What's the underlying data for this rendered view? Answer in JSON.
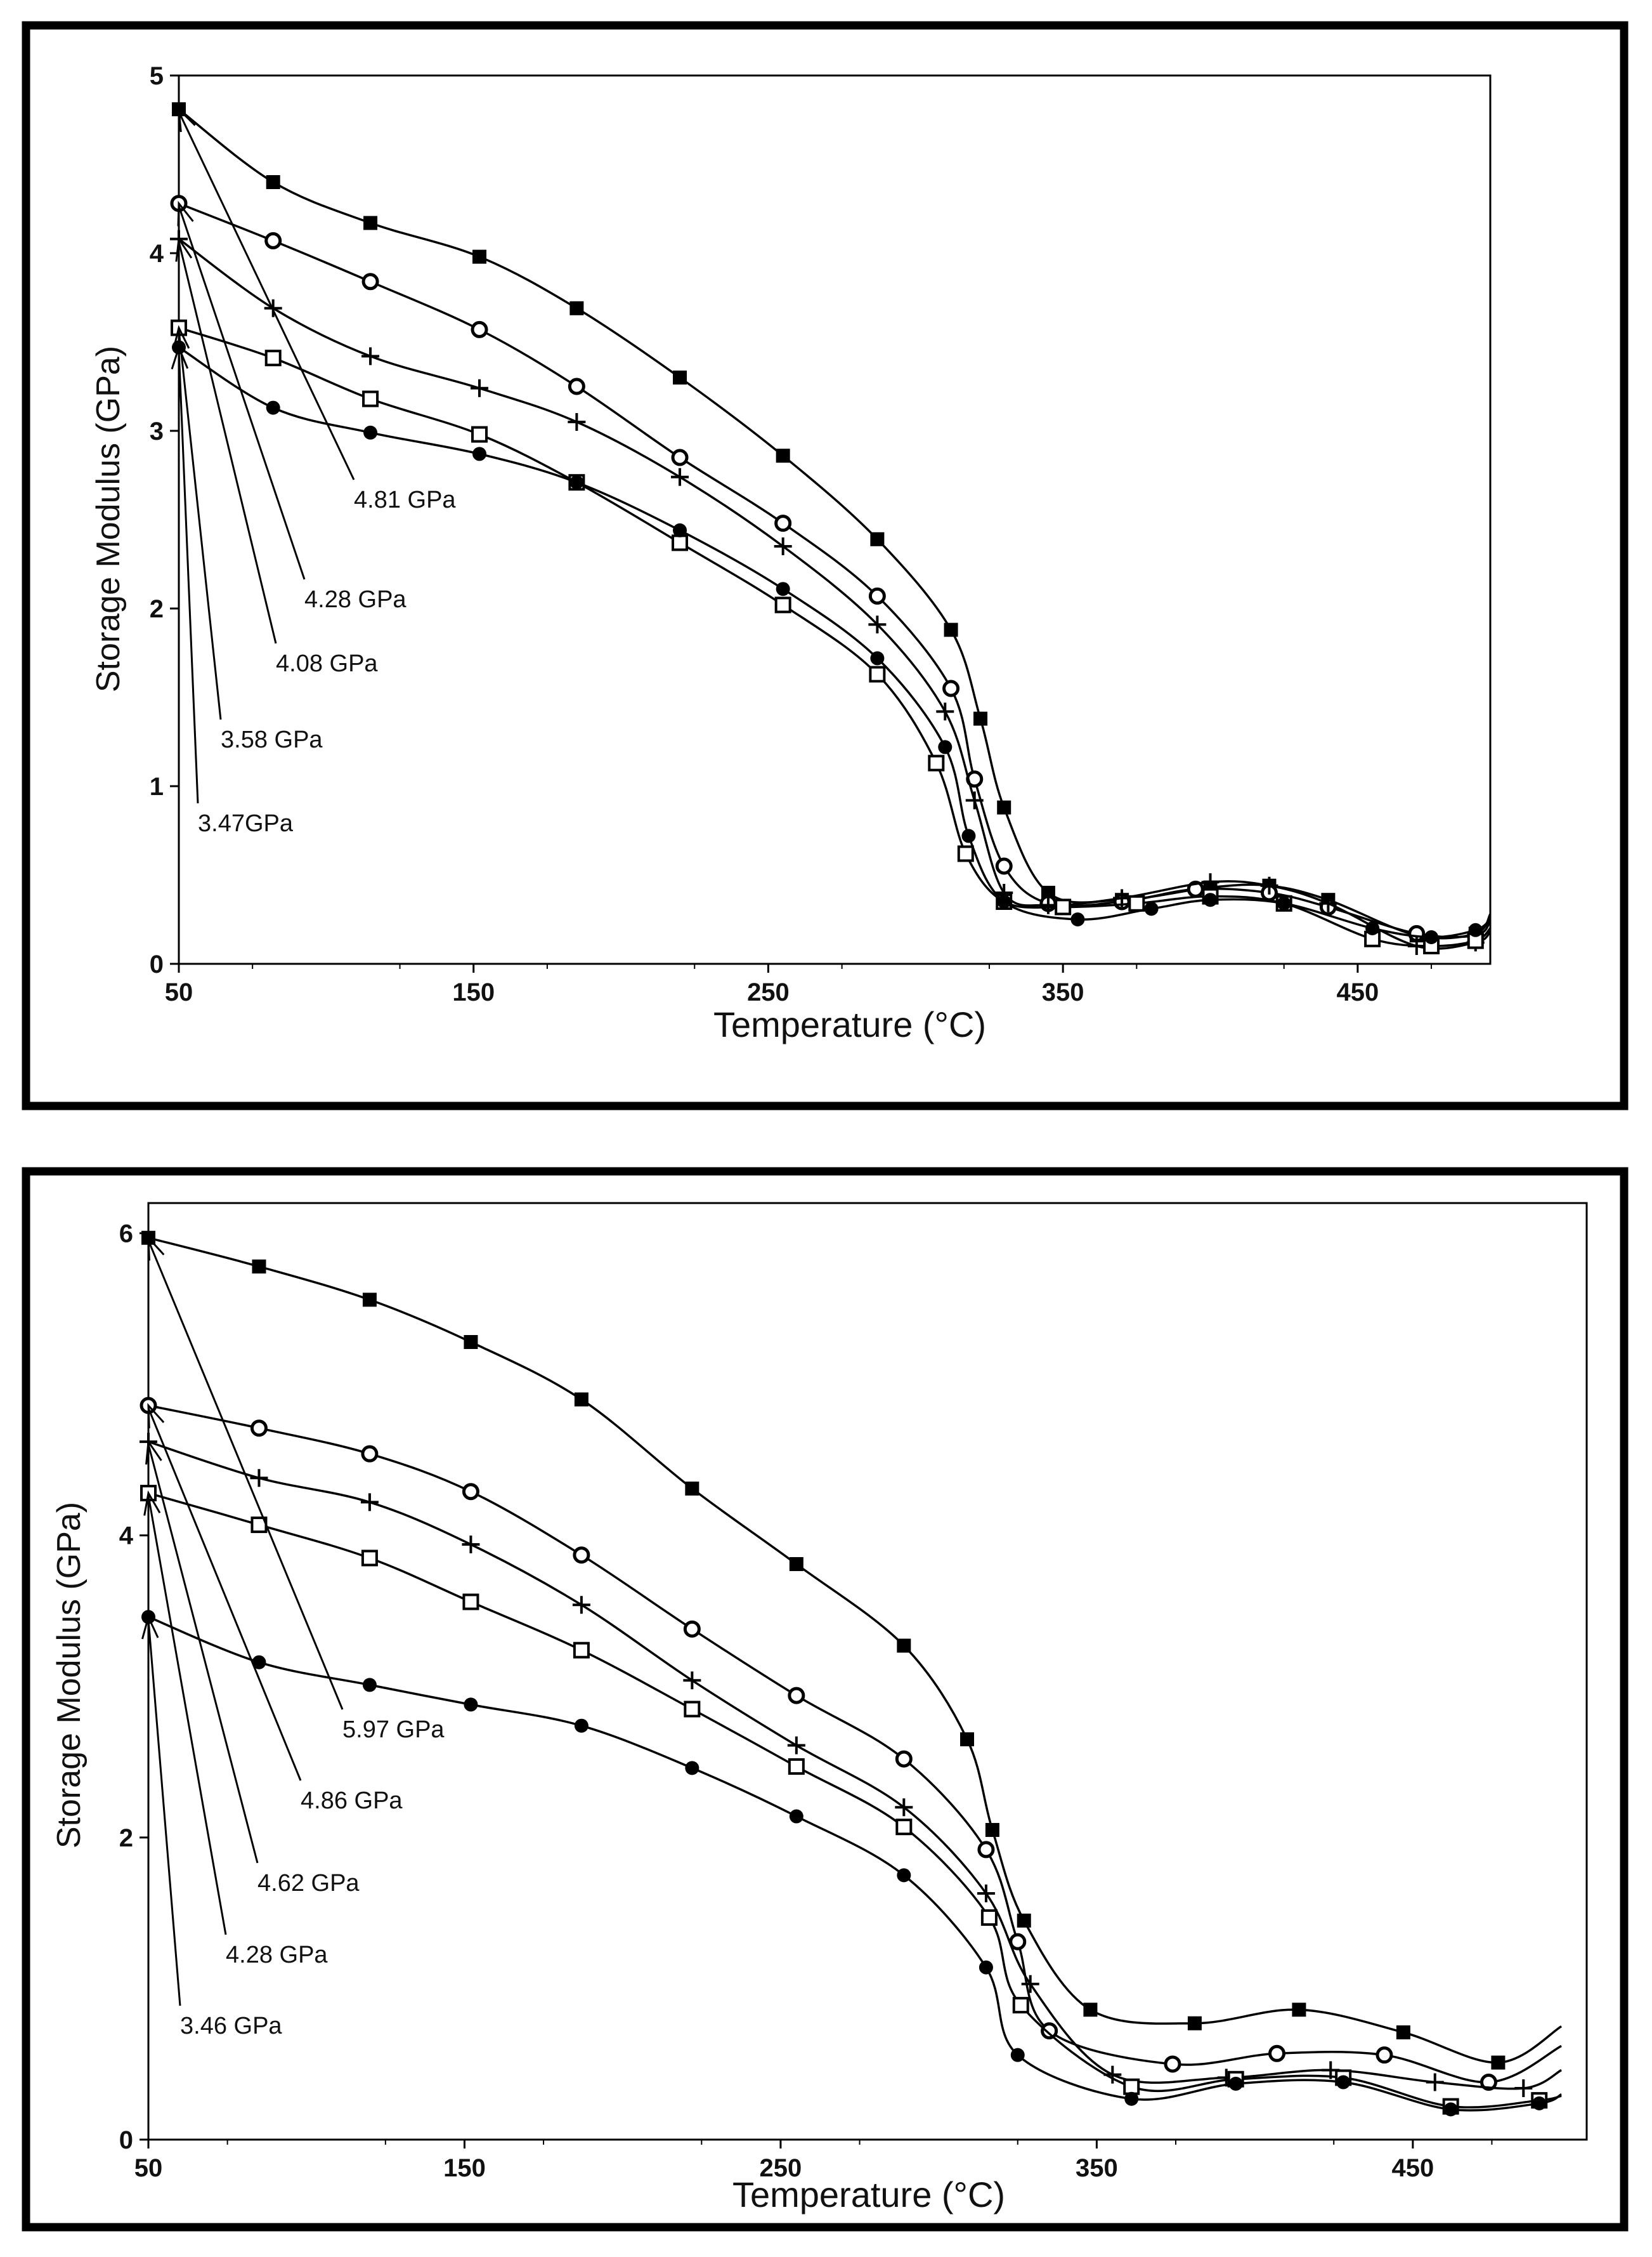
{
  "chart_data": [
    {
      "type": "line",
      "ylabel": "Storage Modulus (GPa)",
      "xlabel": "Temperature (°C)",
      "xlim": [
        50,
        495
      ],
      "ylim": [
        0,
        5
      ],
      "x_ticks": [
        50,
        150,
        250,
        350,
        450
      ],
      "y_ticks": [
        0,
        1,
        2,
        3,
        4,
        5
      ],
      "grid": false,
      "series": [
        {
          "name": "filled-square",
          "marker": "filled-square",
          "annotation": "4.81 GPa",
          "x": [
            50,
            82,
            115,
            152,
            185,
            220,
            255,
            287,
            312,
            322,
            330,
            345,
            370,
            400,
            420,
            440,
            470,
            490,
            495
          ],
          "y": [
            4.81,
            4.4,
            4.17,
            3.98,
            3.69,
            3.3,
            2.86,
            2.39,
            1.88,
            1.38,
            0.88,
            0.4,
            0.36,
            0.43,
            0.44,
            0.36,
            0.16,
            0.17,
            0.28
          ]
        },
        {
          "name": "open-circle",
          "marker": "open-circle",
          "annotation": "4.28 GPa",
          "x": [
            50,
            82,
            115,
            152,
            185,
            220,
            255,
            287,
            312,
            320,
            330,
            345,
            370,
            395,
            420,
            440,
            470,
            490,
            495
          ],
          "y": [
            4.28,
            4.07,
            3.84,
            3.57,
            3.25,
            2.85,
            2.48,
            2.07,
            1.55,
            1.04,
            0.55,
            0.34,
            0.35,
            0.42,
            0.4,
            0.32,
            0.17,
            0.16,
            0.24
          ]
        },
        {
          "name": "plus",
          "marker": "plus",
          "annotation": "4.08 GPa",
          "x": [
            50,
            82,
            115,
            152,
            185,
            220,
            255,
            287,
            310,
            320,
            330,
            345,
            370,
            400,
            420,
            440,
            470,
            490,
            495
          ],
          "y": [
            4.08,
            3.69,
            3.42,
            3.24,
            3.05,
            2.74,
            2.35,
            1.91,
            1.42,
            0.92,
            0.4,
            0.33,
            0.37,
            0.46,
            0.44,
            0.34,
            0.1,
            0.12,
            0.18
          ]
        },
        {
          "name": "open-square",
          "marker": "open-square",
          "annotation": "3.58 GPa",
          "x": [
            50,
            82,
            115,
            152,
            185,
            220,
            255,
            287,
            307,
            317,
            330,
            350,
            375,
            400,
            425,
            455,
            475,
            490,
            495
          ],
          "y": [
            3.58,
            3.41,
            3.18,
            2.98,
            2.71,
            2.37,
            2.02,
            1.63,
            1.13,
            0.62,
            0.35,
            0.32,
            0.34,
            0.38,
            0.34,
            0.14,
            0.1,
            0.13,
            0.2
          ]
        },
        {
          "name": "filled-circle",
          "marker": "filled-circle",
          "annotation": "3.47GPa",
          "x": [
            50,
            82,
            115,
            152,
            185,
            220,
            255,
            287,
            310,
            318,
            330,
            355,
            380,
            400,
            425,
            455,
            475,
            490,
            495
          ],
          "y": [
            3.47,
            3.13,
            2.99,
            2.87,
            2.71,
            2.44,
            2.11,
            1.72,
            1.22,
            0.72,
            0.35,
            0.25,
            0.31,
            0.36,
            0.34,
            0.2,
            0.15,
            0.19,
            0.25
          ]
        }
      ]
    },
    {
      "type": "line",
      "ylabel": "Storage Modulus (GPa)",
      "xlabel": "Temperature (°C)",
      "xlim": [
        50,
        505
      ],
      "ylim": [
        0,
        6.2
      ],
      "x_ticks": [
        50,
        150,
        250,
        350,
        450
      ],
      "y_ticks": [
        0,
        2,
        4,
        6
      ],
      "grid": false,
      "series": [
        {
          "name": "filled-square",
          "marker": "filled-square",
          "annotation": "5.97 GPa",
          "x": [
            50,
            85,
            120,
            152,
            187,
            222,
            255,
            289,
            309,
            317,
            327,
            348,
            381,
            414,
            447,
            477,
            497
          ],
          "y": [
            5.97,
            5.78,
            5.56,
            5.28,
            4.9,
            4.31,
            3.81,
            3.27,
            2.65,
            2.05,
            1.45,
            0.86,
            0.77,
            0.86,
            0.71,
            0.51,
            0.75
          ]
        },
        {
          "name": "open-circle",
          "marker": "open-circle",
          "annotation": "4.86 GPa",
          "x": [
            50,
            85,
            120,
            152,
            187,
            222,
            255,
            289,
            315,
            325,
            335,
            374,
            407,
            441,
            474,
            497
          ],
          "y": [
            4.86,
            4.71,
            4.54,
            4.29,
            3.87,
            3.38,
            2.94,
            2.52,
            1.92,
            1.31,
            0.72,
            0.5,
            0.57,
            0.56,
            0.38,
            0.62
          ]
        },
        {
          "name": "plus",
          "marker": "plus",
          "annotation": "4.62 GPa",
          "x": [
            50,
            85,
            120,
            152,
            187,
            222,
            255,
            289,
            315,
            329,
            355,
            391,
            424,
            457,
            485,
            497
          ],
          "y": [
            4.62,
            4.38,
            4.22,
            3.94,
            3.54,
            3.04,
            2.61,
            2.2,
            1.63,
            1.03,
            0.43,
            0.41,
            0.46,
            0.38,
            0.34,
            0.46
          ]
        },
        {
          "name": "open-square",
          "marker": "open-square",
          "annotation": "4.28 GPa",
          "x": [
            50,
            85,
            120,
            152,
            187,
            222,
            255,
            289,
            316,
            326,
            361,
            394,
            428,
            462,
            490,
            497
          ],
          "y": [
            4.28,
            4.07,
            3.85,
            3.56,
            3.24,
            2.85,
            2.47,
            2.07,
            1.47,
            0.89,
            0.35,
            0.4,
            0.41,
            0.22,
            0.26,
            0.29
          ]
        },
        {
          "name": "filled-circle",
          "marker": "filled-circle",
          "annotation": "3.46 GPa",
          "x": [
            50,
            85,
            120,
            152,
            187,
            222,
            255,
            289,
            315,
            325,
            361,
            394,
            428,
            462,
            490,
            497
          ],
          "y": [
            3.46,
            3.16,
            3.01,
            2.88,
            2.74,
            2.46,
            2.14,
            1.75,
            1.14,
            0.56,
            0.27,
            0.37,
            0.38,
            0.2,
            0.24,
            0.3
          ]
        }
      ]
    }
  ]
}
